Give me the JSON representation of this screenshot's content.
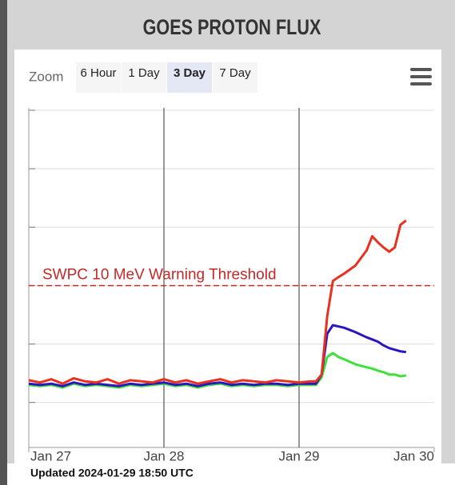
{
  "header": {
    "title": "GOES PROTON FLUX"
  },
  "zoom": {
    "label": "Zoom",
    "options": [
      "6 Hour",
      "1 Day",
      "3 Day",
      "7 Day"
    ],
    "selected": "3 Day"
  },
  "footer": {
    "text": "Updated 2024-01-29 18:50 UTC"
  },
  "chart_data": {
    "type": "line",
    "log_y": true,
    "grid": true,
    "x": [
      0,
      2,
      4,
      6,
      8,
      10,
      12,
      14,
      16,
      18,
      20,
      22,
      24,
      26,
      28,
      30,
      32,
      34,
      36,
      38,
      40,
      42,
      44,
      46,
      48,
      50,
      51,
      52,
      53,
      54,
      55,
      56,
      58,
      60,
      61,
      62,
      63,
      64,
      65,
      66,
      67
    ],
    "xlim": [
      0,
      72
    ],
    "xticks": [
      {
        "value": 0,
        "label": "Jan 27"
      },
      {
        "value": 24,
        "label": "Jan 28"
      },
      {
        "value": 48,
        "label": "Jan 29"
      },
      {
        "value": 72,
        "label": "Jan 30"
      }
    ],
    "ylim": [
      0.017,
      11000
    ],
    "yticks": [
      0.1,
      1,
      10,
      100,
      1000,
      10000
    ],
    "threshold": {
      "value": 10,
      "label": "SWPC 10 MeV Warning Threshold",
      "color": "#c62828"
    },
    "series": [
      {
        "color": "#e8311e",
        "values": [
          0.24,
          0.22,
          0.25,
          0.21,
          0.26,
          0.23,
          0.22,
          0.25,
          0.21,
          0.24,
          0.23,
          0.22,
          0.25,
          0.22,
          0.24,
          0.21,
          0.23,
          0.25,
          0.22,
          0.24,
          0.23,
          0.22,
          0.24,
          0.23,
          0.22,
          0.23,
          0.23,
          0.3,
          3,
          12,
          14,
          16,
          22,
          40,
          70,
          55,
          45,
          38,
          45,
          110,
          130
        ]
      },
      {
        "color": "#2a16c0",
        "values": [
          0.21,
          0.2,
          0.21,
          0.19,
          0.22,
          0.2,
          0.21,
          0.2,
          0.19,
          0.21,
          0.2,
          0.21,
          0.22,
          0.2,
          0.21,
          0.19,
          0.21,
          0.22,
          0.2,
          0.21,
          0.2,
          0.21,
          0.21,
          0.2,
          0.21,
          0.21,
          0.21,
          0.3,
          1.5,
          2.1,
          2.0,
          1.9,
          1.6,
          1.3,
          1.2,
          1.1,
          0.95,
          0.85,
          0.8,
          0.75,
          0.73
        ]
      },
      {
        "color": "#3fe03a",
        "values": [
          0.2,
          0.19,
          0.2,
          0.18,
          0.21,
          0.19,
          0.2,
          0.19,
          0.18,
          0.2,
          0.19,
          0.2,
          0.21,
          0.19,
          0.2,
          0.18,
          0.2,
          0.21,
          0.19,
          0.2,
          0.19,
          0.2,
          0.2,
          0.19,
          0.2,
          0.2,
          0.2,
          0.27,
          0.6,
          0.7,
          0.6,
          0.55,
          0.45,
          0.4,
          0.38,
          0.35,
          0.33,
          0.3,
          0.3,
          0.28,
          0.29
        ]
      }
    ]
  }
}
